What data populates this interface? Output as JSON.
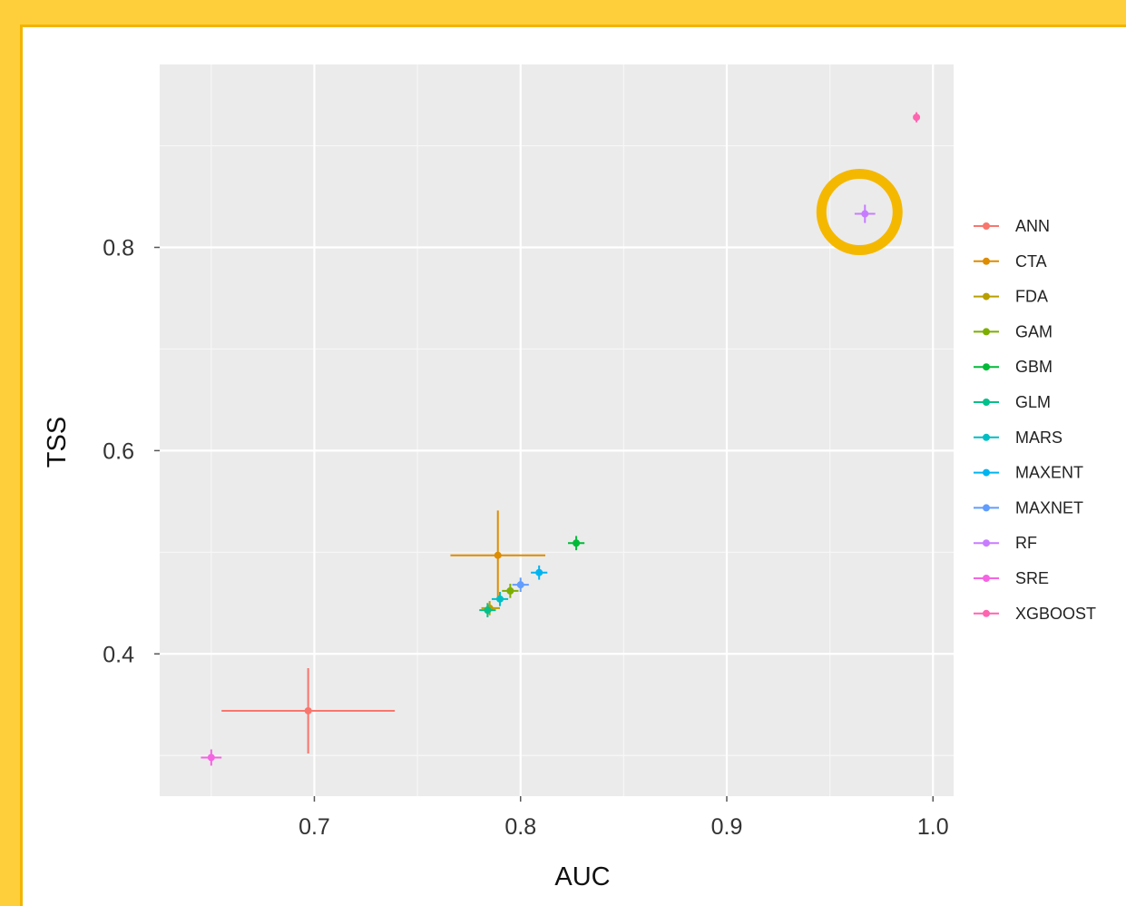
{
  "chart_data": {
    "type": "scatter",
    "title": "",
    "xlabel": "AUC",
    "ylabel": "TSS",
    "xlim": [
      0.625,
      1.01
    ],
    "ylim": [
      0.26,
      0.98
    ],
    "xticks": [
      0.7,
      0.8,
      0.9,
      1.0
    ],
    "xtick_labels": [
      "0.7",
      "0.8",
      "0.9",
      "1.0"
    ],
    "yticks": [
      0.4,
      0.6,
      0.8
    ],
    "ytick_labels": [
      "0.4",
      "0.6",
      "0.8"
    ],
    "grid": true,
    "legend_position": "right",
    "highlight": {
      "series": "RF",
      "style": "circle",
      "color": "#f5b800"
    },
    "series": [
      {
        "name": "ANN",
        "color": "#f8766d",
        "x": 0.697,
        "y": 0.344,
        "x_err": [
          0.655,
          0.739
        ],
        "y_err": [
          0.302,
          0.386
        ]
      },
      {
        "name": "CTA",
        "color": "#de8c00",
        "x": 0.789,
        "y": 0.497,
        "x_err": [
          0.766,
          0.812
        ],
        "y_err": [
          0.455,
          0.541
        ]
      },
      {
        "name": "FDA",
        "color": "#b79f00",
        "x": 0.785,
        "y": 0.445,
        "x_err": [
          0.781,
          0.79
        ],
        "y_err": [
          0.438,
          0.452
        ]
      },
      {
        "name": "GAM",
        "color": "#7cae00",
        "x": 0.795,
        "y": 0.462,
        "x_err": [
          0.791,
          0.799
        ],
        "y_err": [
          0.455,
          0.469
        ]
      },
      {
        "name": "GBM",
        "color": "#00ba38",
        "x": 0.827,
        "y": 0.509,
        "x_err": [
          0.823,
          0.831
        ],
        "y_err": [
          0.502,
          0.516
        ]
      },
      {
        "name": "GLM",
        "color": "#00c08b",
        "x": 0.784,
        "y": 0.443,
        "x_err": [
          0.78,
          0.788
        ],
        "y_err": [
          0.436,
          0.45
        ]
      },
      {
        "name": "MARS",
        "color": "#00bfc4",
        "x": 0.79,
        "y": 0.454,
        "x_err": [
          0.786,
          0.794
        ],
        "y_err": [
          0.447,
          0.461
        ]
      },
      {
        "name": "MAXENT",
        "color": "#00b4f0",
        "x": 0.809,
        "y": 0.48,
        "x_err": [
          0.805,
          0.813
        ],
        "y_err": [
          0.473,
          0.487
        ]
      },
      {
        "name": "MAXNET",
        "color": "#619cff",
        "x": 0.8,
        "y": 0.468,
        "x_err": [
          0.796,
          0.804
        ],
        "y_err": [
          0.461,
          0.475
        ]
      },
      {
        "name": "RF",
        "color": "#c77cff",
        "x": 0.967,
        "y": 0.833,
        "x_err": [
          0.962,
          0.972
        ],
        "y_err": [
          0.824,
          0.842
        ]
      },
      {
        "name": "SRE",
        "color": "#f564e3",
        "x": 0.65,
        "y": 0.298,
        "x_err": [
          0.645,
          0.655
        ],
        "y_err": [
          0.29,
          0.306
        ]
      },
      {
        "name": "XGBOOST",
        "color": "#ff64b0",
        "x": 0.992,
        "y": 0.928,
        "x_err": [
          0.991,
          0.993
        ],
        "y_err": [
          0.923,
          0.933
        ]
      }
    ]
  }
}
